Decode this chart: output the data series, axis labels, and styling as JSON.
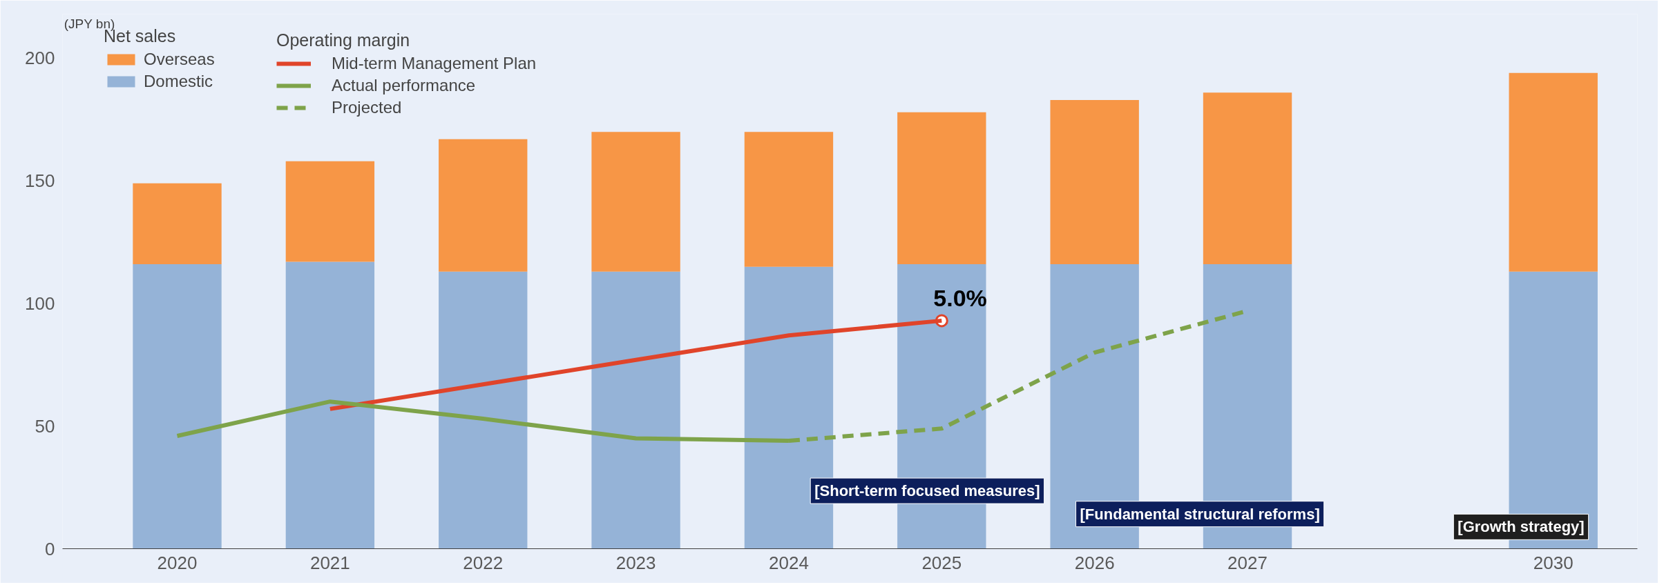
{
  "chart_data": {
    "type": "bar",
    "stacked": true,
    "categories": [
      "2020",
      "2021",
      "2022",
      "2023",
      "2024",
      "2025",
      "2026",
      "2027",
      null,
      "2030"
    ],
    "series": [
      {
        "name": "Domestic",
        "color": "#95b3d7",
        "values": [
          116,
          117,
          113,
          113,
          115,
          116,
          116,
          116,
          null,
          113
        ]
      },
      {
        "name": "Overseas",
        "color": "#f79646",
        "values": [
          33,
          41,
          54,
          57,
          55,
          62,
          67,
          70,
          null,
          81
        ]
      },
      {
        "name": "Mid-term Management Plan",
        "type": "line",
        "color": "#e0442a",
        "line_style": "solid",
        "values": [
          null,
          57,
          67,
          77,
          87,
          93,
          null,
          null,
          null,
          null
        ]
      },
      {
        "name": "Actual performance",
        "type": "line",
        "color": "#7ea34a",
        "line_style": "solid",
        "values": [
          46,
          60,
          53,
          45,
          44,
          null,
          null,
          null,
          null,
          null
        ]
      },
      {
        "name": "Projected",
        "type": "line",
        "color": "#7ea34a",
        "line_style": "dashed",
        "values": [
          null,
          null,
          null,
          null,
          44,
          49,
          80,
          97,
          null,
          null
        ]
      }
    ],
    "legend_title": [
      "Net sales",
      "Operating margin"
    ],
    "legend": "top left",
    "ylabel": "(JPY bn)",
    "ylim": [
      0,
      218
    ],
    "yticks": [
      0,
      50,
      100,
      150,
      200
    ],
    "grid": false,
    "annotations": [
      {
        "text": "5.0%",
        "x": "2025",
        "y": 93
      },
      "[Short-term focused measures]",
      "[Fundamental structural reforms]",
      "[Growth strategy]"
    ]
  }
}
